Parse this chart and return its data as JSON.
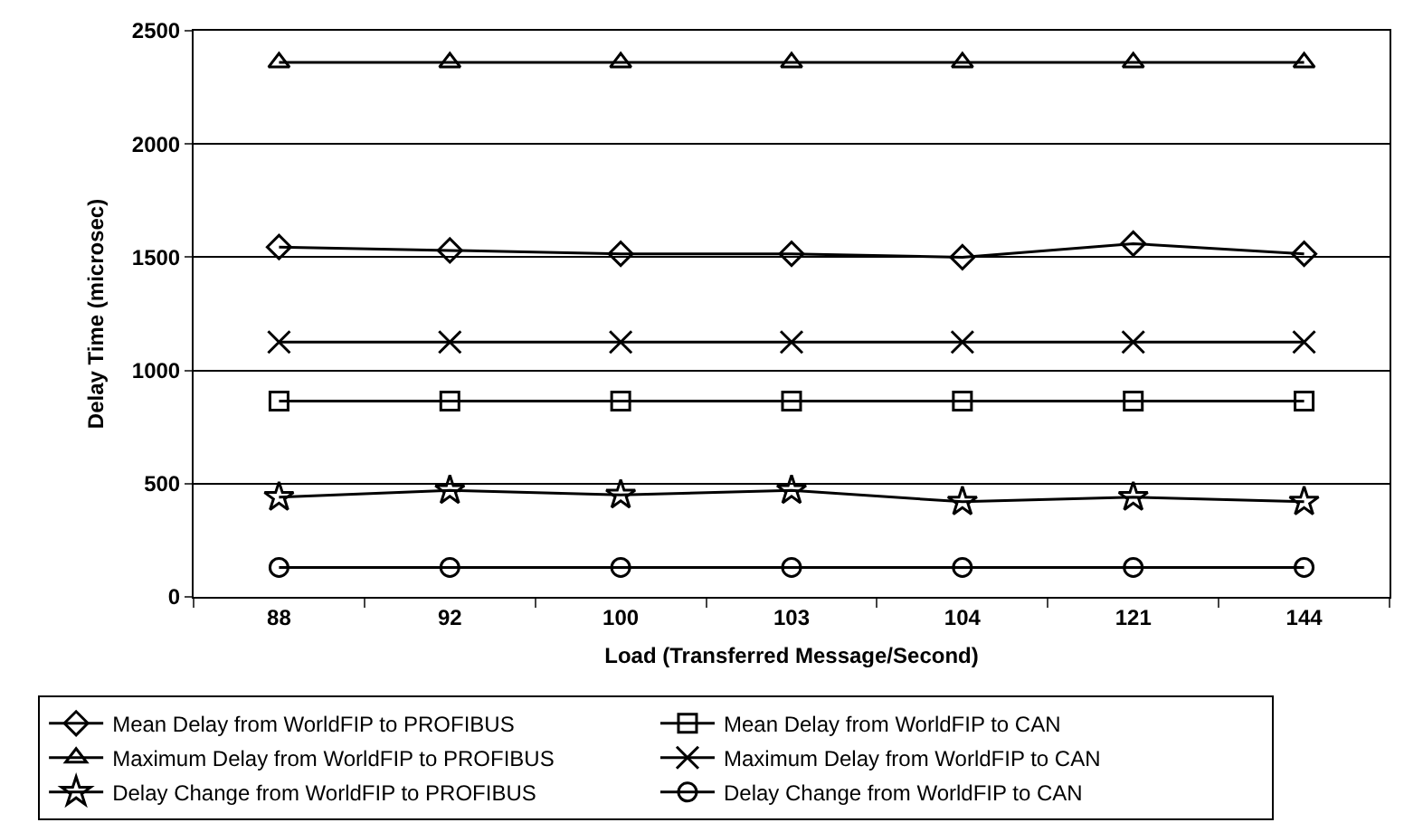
{
  "chart_data": {
    "type": "line",
    "xlabel": "Load (Transferred Message/Second)",
    "ylabel": "Delay Time (microsec)",
    "categories": [
      "88",
      "92",
      "100",
      "103",
      "104",
      "121",
      "144"
    ],
    "ylim": [
      0,
      2500
    ],
    "yticks": [
      0,
      500,
      1000,
      1500,
      2000,
      2500
    ],
    "grid": "y",
    "legend": "bottom",
    "series": [
      {
        "name": "Mean Delay from WorldFIP to PROFIBUS",
        "color": "#000000",
        "marker": "diamond",
        "values": [
          1545,
          1530,
          1515,
          1515,
          1500,
          1560,
          1515
        ]
      },
      {
        "name": "Mean Delay from WorldFIP to CAN",
        "color": "#000000",
        "marker": "square",
        "values": [
          865,
          865,
          865,
          865,
          865,
          865,
          865
        ]
      },
      {
        "name": "Maximum Delay from WorldFIP to PROFIBUS",
        "color": "#000000",
        "marker": "triangle",
        "values": [
          2360,
          2360,
          2360,
          2360,
          2360,
          2360,
          2360
        ]
      },
      {
        "name": "Maximum Delay from WorldFIP to CAN",
        "color": "#000000",
        "marker": "cross",
        "values": [
          1125,
          1125,
          1125,
          1125,
          1125,
          1125,
          1125
        ]
      },
      {
        "name": "Delay Change from WorldFIP to PROFIBUS",
        "color": "#000000",
        "marker": "star",
        "values": [
          440,
          470,
          450,
          470,
          420,
          440,
          420
        ]
      },
      {
        "name": "Delay Change from WorldFIP to CAN",
        "color": "#000000",
        "marker": "circle",
        "values": [
          130,
          130,
          130,
          130,
          130,
          130,
          130
        ]
      }
    ]
  }
}
